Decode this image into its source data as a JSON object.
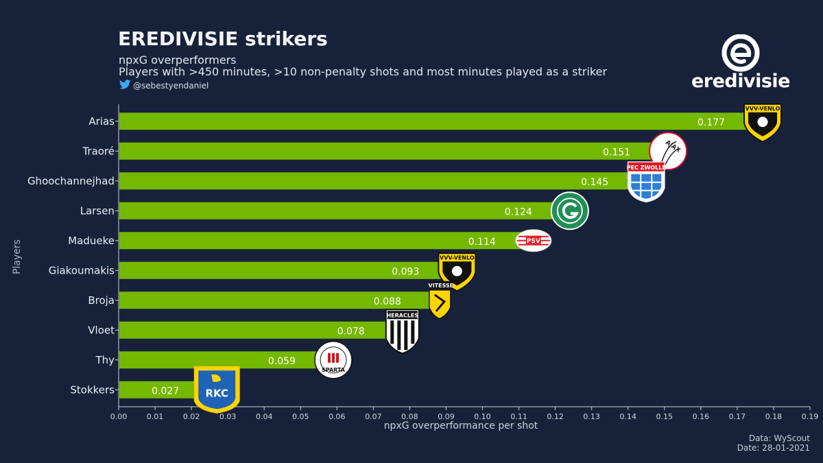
{
  "header": {
    "title": "EREDIVISIE strikers",
    "subtitle": "npxG overperformers",
    "description": "Players with >450 minutes, >10 non-penalty shots and most minutes played as a striker",
    "twitter_handle": "@sebestyendaniel",
    "twitter_icon": "twitter-bird-icon"
  },
  "brand": {
    "name": "eredivisie",
    "logo_icon": "eredivisie-e-logo"
  },
  "footer": {
    "source": "Data: WyScout",
    "date": "Date: 28-01-2021"
  },
  "colors": {
    "background": "#17223a",
    "bar": "#75b800",
    "text": "#e9edf3"
  },
  "chart_data": {
    "type": "bar",
    "orientation": "horizontal",
    "xlabel": "npxG overperformance per shot",
    "ylabel": "Players",
    "xlim": [
      0.0,
      0.19
    ],
    "xticks": [
      "0.00",
      "0.01",
      "0.02",
      "0.03",
      "0.04",
      "0.05",
      "0.06",
      "0.07",
      "0.08",
      "0.09",
      "0.10",
      "0.11",
      "0.12",
      "0.13",
      "0.14",
      "0.15",
      "0.16",
      "0.17",
      "0.18",
      "0.19"
    ],
    "grid": false,
    "categories": [
      "Arias",
      "Traoré",
      "Ghoochannejhad",
      "Larsen",
      "Madueke",
      "Giakoumakis",
      "Broja",
      "Vloet",
      "Thy",
      "Stokkers"
    ],
    "values": [
      0.177,
      0.151,
      0.145,
      0.124,
      0.114,
      0.093,
      0.088,
      0.078,
      0.059,
      0.027
    ],
    "value_labels": [
      "0.177",
      "0.151",
      "0.145",
      "0.124",
      "0.114",
      "0.093",
      "0.088",
      "0.078",
      "0.059",
      "0.027"
    ],
    "clubs": [
      "VVV-Venlo",
      "Ajax",
      "PEC Zwolle",
      "FC Groningen",
      "PSV",
      "VVV-Venlo",
      "Vitesse",
      "Heracles",
      "Sparta",
      "RKC Waalwijk"
    ],
    "club_badge_text": [
      "VVV-VENLO",
      "AJAX",
      "PEC ZWOLLE",
      "",
      "PSV",
      "VVV-VENLO",
      "VITESSE",
      "HERACLES",
      "SPARTA",
      "RKC"
    ]
  }
}
